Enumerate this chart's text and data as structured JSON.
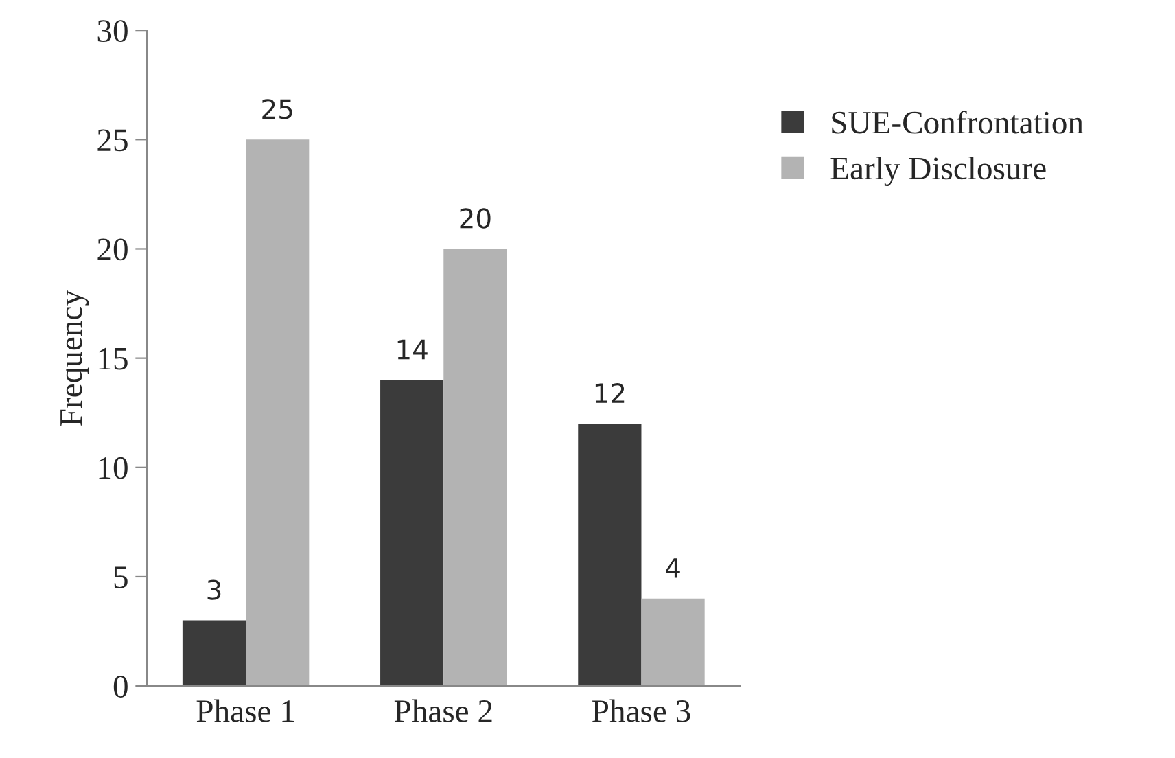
{
  "chart_data": {
    "type": "bar",
    "ylabel": "Frequency",
    "categories": [
      "Phase 1",
      "Phase 2",
      "Phase 3"
    ],
    "series": [
      {
        "name": "SUE-Confrontation",
        "color": "#3b3b3b",
        "values": [
          3,
          14,
          12
        ]
      },
      {
        "name": "Early Disclosure",
        "color": "#b3b3b3",
        "values": [
          25,
          20,
          4
        ]
      }
    ],
    "ylim": [
      0,
      30
    ],
    "yticks": [
      0,
      5,
      10,
      15,
      20,
      25,
      30
    ],
    "data_labels": true,
    "grid": false,
    "legend": "right"
  }
}
